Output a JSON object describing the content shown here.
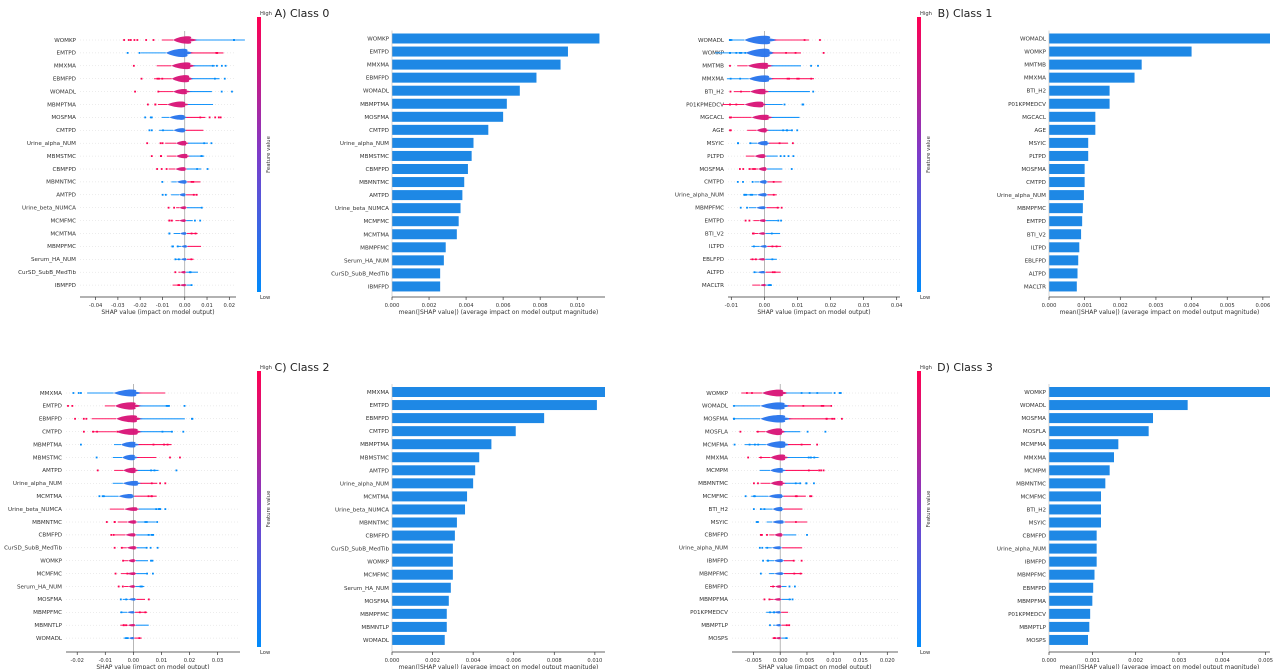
{
  "colors": {
    "high": "#ff0052",
    "low": "#008bfb",
    "bar": "#1e88e5",
    "mid": "#7d3cc9"
  },
  "colorbar": {
    "high": "High",
    "low": "Low",
    "label": "Feature value"
  },
  "chart_data": [
    {
      "type": "violin",
      "panel": "class0-beeswarm",
      "title": "A) Class 0",
      "xlabel": "SHAP value (impact on model output)",
      "xlim": [
        -0.047,
        0.023
      ],
      "ticks": [
        "-0.04",
        "-0.03",
        "-0.02",
        "-0.01",
        "0.00",
        "0.01",
        "0.02"
      ],
      "features": [
        "WOMKP",
        "EMTPD",
        "MMXMA",
        "EBMFPD",
        "WOMADL",
        "MBMPTMA",
        "MOSFMA",
        "CMTPD",
        "Urine_alpha_NUM",
        "MBMSTMC",
        "CBMFPD",
        "MBMNTMC",
        "AMTPD",
        "Urine_beta_NUMCA",
        "MCMFMC",
        "MCMTMA",
        "MBMPFMC",
        "Serum_HA_NUM",
        "CurSD_SubB_MedTib",
        "IBMFPD"
      ]
    },
    {
      "type": "bar",
      "panel": "class0-bar",
      "xlabel": "mean(|SHAP value|) (average impact on model output magnitude)",
      "xlim": [
        0,
        0.0115
      ],
      "ticks": [
        "0.000",
        "0.002",
        "0.004",
        "0.006",
        "0.008",
        "0.010"
      ],
      "categories": [
        "WOMKP",
        "EMTPD",
        "MMXMA",
        "EBMFPD",
        "WOMADL",
        "MBMPTMA",
        "MOSFMA",
        "CMTPD",
        "Urine_alpha_NUM",
        "MBMSTMC",
        "CBMFPD",
        "MBMNTMC",
        "AMTPD",
        "Urine_beta_NUMCA",
        "MCMFMC",
        "MCMTMA",
        "MBMPFMC",
        "Serum_HA_NUM",
        "CurSD_SubB_MedTib",
        "IBMFPD"
      ],
      "values": [
        0.0112,
        0.0095,
        0.0091,
        0.0078,
        0.0069,
        0.0062,
        0.006,
        0.0052,
        0.0044,
        0.0043,
        0.0041,
        0.0039,
        0.0038,
        0.0037,
        0.0036,
        0.0035,
        0.0029,
        0.0028,
        0.0026,
        0.0026
      ]
    },
    {
      "type": "violin",
      "panel": "class1-beeswarm",
      "title": "B) Class 1",
      "xlabel": "SHAP value (impact on model output)",
      "xlim": [
        -0.011,
        0.041
      ],
      "ticks": [
        "-0.01",
        "0.00",
        "0.01",
        "0.02",
        "0.03",
        "0.04"
      ],
      "features": [
        "WOMADL",
        "WOMKP",
        "MMTMB",
        "MMXMA",
        "BTI_H2",
        "P01KPMEDCV",
        "MGCACL",
        "AGE",
        "MSYIC",
        "PLTPD",
        "MOSFMA",
        "CMTPD",
        "Urine_alpha_NUM",
        "MBMPFMC",
        "EMTPD",
        "BTI_V2",
        "ILTPD",
        "EBLFPD",
        "ALTPD",
        "MACLTR"
      ]
    },
    {
      "type": "bar",
      "panel": "class1-bar",
      "xlabel": "mean(|SHAP value|) (average impact on model output magnitude)",
      "xlim": [
        0,
        0.0062
      ],
      "ticks": [
        "0.000",
        "0.001",
        "0.002",
        "0.003",
        "0.004",
        "0.005",
        "0.006"
      ],
      "categories": [
        "WOMADL",
        "WOMKP",
        "MMTMB",
        "MMXMA",
        "BTI_H2",
        "P01KPMEDCV",
        "MGCACL",
        "AGE",
        "MSYIC",
        "PLTPD",
        "MOSFMA",
        "CMTPD",
        "Urine_alpha_NUM",
        "MBMPFMC",
        "EMTPD",
        "BTI_V2",
        "ILTPD",
        "EBLFPD",
        "ALTPD",
        "MACLTR"
      ],
      "values": [
        0.0062,
        0.004,
        0.0026,
        0.0024,
        0.0017,
        0.0017,
        0.0013,
        0.0013,
        0.0011,
        0.0011,
        0.001,
        0.001,
        0.00098,
        0.00095,
        0.00093,
        0.0009,
        0.00085,
        0.00082,
        0.0008,
        0.00078
      ]
    },
    {
      "type": "violin",
      "panel": "class2-beeswarm",
      "title": "C) Class 2",
      "xlabel": "SHAP value (impact on model output)",
      "xlim": [
        -0.024,
        0.038
      ],
      "ticks": [
        "-0.02",
        "-0.01",
        "0.00",
        "0.01",
        "0.02",
        "0.03"
      ],
      "features": [
        "MMXMA",
        "EMTPD",
        "EBMFPD",
        "CMTPD",
        "MBMPTMA",
        "MBMSTMC",
        "AMTPD",
        "Urine_alpha_NUM",
        "MCMTMA",
        "Urine_beta_NUMCA",
        "MBMNTMC",
        "CBMFPD",
        "CurSD_SubB_MedTib",
        "WOMKP",
        "MCMFMC",
        "Serum_HA_NUM",
        "MOSFMA",
        "MBMPFMC",
        "MBMNTLP",
        "WOMADL"
      ]
    },
    {
      "type": "bar",
      "panel": "class2-bar",
      "xlabel": "mean(|SHAP value|) (average impact on model output magnitude)",
      "xlim": [
        0,
        0.0105
      ],
      "ticks": [
        "0.000",
        "0.002",
        "0.004",
        "0.006",
        "0.008",
        "0.010"
      ],
      "categories": [
        "MMXMA",
        "EMTPD",
        "EBMFPD",
        "CMTPD",
        "MBMPTMA",
        "MBMSTMC",
        "AMTPD",
        "Urine_alpha_NUM",
        "MCMTMA",
        "Urine_beta_NUMCA",
        "MBMNTMC",
        "CBMFPD",
        "CurSD_SubB_MedTib",
        "WOMKP",
        "MCMFMC",
        "Serum_HA_NUM",
        "MOSFMA",
        "MBMPFMC",
        "MBMNTLP",
        "WOMADL"
      ],
      "values": [
        0.0105,
        0.0101,
        0.0075,
        0.0061,
        0.0049,
        0.0043,
        0.0041,
        0.004,
        0.0037,
        0.0036,
        0.0032,
        0.0031,
        0.003,
        0.003,
        0.003,
        0.0029,
        0.0028,
        0.0027,
        0.0027,
        0.0026
      ]
    },
    {
      "type": "violin",
      "panel": "class3-beeswarm",
      "title": "D) Class 3",
      "xlabel": "SHAP value (impact on model output)",
      "xlim": [
        -0.009,
        0.022
      ],
      "ticks": [
        "-0.005",
        "0.000",
        "0.005",
        "0.010",
        "0.015",
        "0.020"
      ],
      "features": [
        "WOMKP",
        "WOMADL",
        "MOSFMA",
        "MOSFLA",
        "MCMFMA",
        "MMXMA",
        "MCMPM",
        "MBMNTMC",
        "MCMFMC",
        "BTI_H2",
        "MSYIC",
        "CBMFPD",
        "Urine_alpha_NUM",
        "IBMFPD",
        "MBMPFMC",
        "EBMFPD",
        "MBMPFMA",
        "P01KPMEDCV",
        "MBMPTLP",
        "MOSPS"
      ]
    },
    {
      "type": "bar",
      "panel": "class3-bar",
      "xlabel": "mean(|SHAP value|) (average impact on model output magnitude)",
      "xlim": [
        0,
        0.0051
      ],
      "ticks": [
        "0.000",
        "0.001",
        "0.002",
        "0.003",
        "0.004",
        "0.005"
      ],
      "categories": [
        "WOMKP",
        "WOMADL",
        "MOSFMA",
        "MOSFLA",
        "MCMFMA",
        "MMXMA",
        "MCMPM",
        "MBMNTMC",
        "MCMFMC",
        "BTI_H2",
        "MSYIC",
        "CBMFPD",
        "Urine_alpha_NUM",
        "IBMFPD",
        "MBMPFMC",
        "EBMFPD",
        "MBMPFMA",
        "P01KPMEDCV",
        "MBMPTLP",
        "MOSPS"
      ],
      "values": [
        0.0051,
        0.0032,
        0.0024,
        0.0023,
        0.0016,
        0.0015,
        0.0014,
        0.0013,
        0.0012,
        0.0012,
        0.0012,
        0.0011,
        0.0011,
        0.0011,
        0.00105,
        0.00102,
        0.001,
        0.00095,
        0.00093,
        0.0009
      ]
    }
  ]
}
